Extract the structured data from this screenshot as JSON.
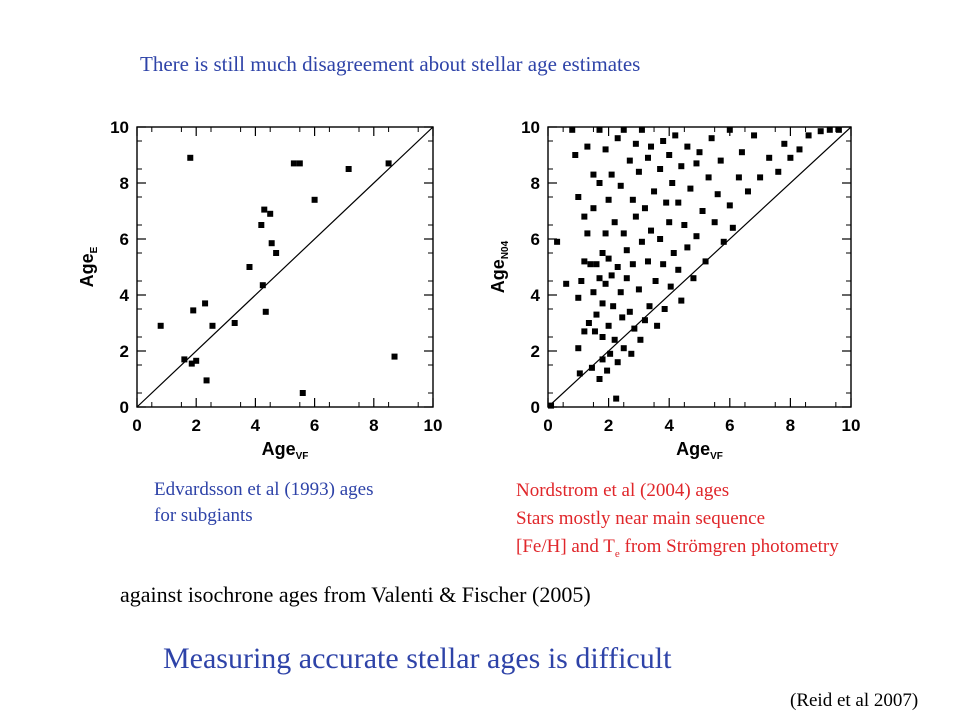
{
  "title": "There is still much disagreement about stellar age estimates",
  "captions": {
    "left_line1": "Edvardsson et al (1993) ages",
    "left_line2": "for subgiants",
    "right_line1": "Nordstrom et al (2004) ages",
    "right_line2": "Stars mostly near main sequence",
    "right_line3_a": "[Fe/H] and T",
    "right_line3_sub": "e",
    "right_line3_b": " from Strömgren photometry"
  },
  "against": "against isochrone ages from Valenti & Fischer (2005)",
  "conclusion": "Measuring accurate stellar ages is difficult",
  "citation": "(Reid et al 2007)",
  "chart_data": [
    {
      "type": "scatter",
      "xlabel": "Age",
      "xlabel_sub": "VF",
      "ylabel": "Age",
      "ylabel_sub": "E",
      "xlim": [
        0,
        10
      ],
      "ylim": [
        0,
        10
      ],
      "xticks": [
        0,
        2,
        4,
        6,
        8,
        10
      ],
      "yticks": [
        0,
        2,
        4,
        6,
        8,
        10
      ],
      "one_to_one_line": true,
      "marker_color": "#000000",
      "points": [
        [
          0.8,
          2.9
        ],
        [
          1.6,
          1.7
        ],
        [
          1.8,
          8.9
        ],
        [
          1.85,
          1.55
        ],
        [
          1.9,
          3.45
        ],
        [
          2.0,
          1.65
        ],
        [
          2.3,
          3.7
        ],
        [
          2.35,
          0.95
        ],
        [
          2.55,
          2.9
        ],
        [
          3.3,
          3.0
        ],
        [
          3.8,
          5.0
        ],
        [
          4.2,
          6.5
        ],
        [
          4.25,
          4.35
        ],
        [
          4.3,
          7.05
        ],
        [
          4.35,
          3.4
        ],
        [
          4.5,
          6.9
        ],
        [
          4.55,
          5.85
        ],
        [
          4.7,
          5.5
        ],
        [
          5.3,
          8.7
        ],
        [
          5.5,
          8.7
        ],
        [
          5.6,
          0.5
        ],
        [
          6.0,
          7.4
        ],
        [
          7.15,
          8.5
        ],
        [
          8.5,
          8.7
        ],
        [
          8.7,
          1.8
        ]
      ]
    },
    {
      "type": "scatter",
      "xlabel": "Age",
      "xlabel_sub": "VF",
      "ylabel": "Age",
      "ylabel_sub": "N04",
      "xlim": [
        0,
        10
      ],
      "ylim": [
        0,
        10
      ],
      "xticks": [
        0,
        2,
        4,
        6,
        8,
        10
      ],
      "yticks": [
        0,
        2,
        4,
        6,
        8,
        10
      ],
      "one_to_one_line": true,
      "marker_color": "#000000",
      "points": [
        [
          0.1,
          0.05
        ],
        [
          0.3,
          5.9
        ],
        [
          0.6,
          4.4
        ],
        [
          0.8,
          9.9
        ],
        [
          0.9,
          9.0
        ],
        [
          1.0,
          7.5
        ],
        [
          1.0,
          3.9
        ],
        [
          1.0,
          2.1
        ],
        [
          1.05,
          1.2
        ],
        [
          1.1,
          4.5
        ],
        [
          1.2,
          6.8
        ],
        [
          1.2,
          5.2
        ],
        [
          1.2,
          2.7
        ],
        [
          1.3,
          9.3
        ],
        [
          1.3,
          6.2
        ],
        [
          1.35,
          3.0
        ],
        [
          1.4,
          5.1
        ],
        [
          1.45,
          1.4
        ],
        [
          1.5,
          8.3
        ],
        [
          1.5,
          7.1
        ],
        [
          1.5,
          4.1
        ],
        [
          1.55,
          2.7
        ],
        [
          1.6,
          5.1
        ],
        [
          1.6,
          3.3
        ],
        [
          1.7,
          9.9
        ],
        [
          1.7,
          8.0
        ],
        [
          1.7,
          4.6
        ],
        [
          1.7,
          1.0
        ],
        [
          1.8,
          5.5
        ],
        [
          1.8,
          3.7
        ],
        [
          1.8,
          2.5
        ],
        [
          1.8,
          1.7
        ],
        [
          1.9,
          9.2
        ],
        [
          1.9,
          6.2
        ],
        [
          1.9,
          4.4
        ],
        [
          1.95,
          1.3
        ],
        [
          2.0,
          7.4
        ],
        [
          2.0,
          5.3
        ],
        [
          2.0,
          2.9
        ],
        [
          2.05,
          1.9
        ],
        [
          2.1,
          8.3
        ],
        [
          2.1,
          4.7
        ],
        [
          2.15,
          3.6
        ],
        [
          2.2,
          6.6
        ],
        [
          2.2,
          2.4
        ],
        [
          2.25,
          0.3
        ],
        [
          2.3,
          9.6
        ],
        [
          2.3,
          5.0
        ],
        [
          2.3,
          1.6
        ],
        [
          2.4,
          7.9
        ],
        [
          2.4,
          4.1
        ],
        [
          2.45,
          3.2
        ],
        [
          2.5,
          9.9
        ],
        [
          2.5,
          6.2
        ],
        [
          2.5,
          2.1
        ],
        [
          2.6,
          5.6
        ],
        [
          2.6,
          4.6
        ],
        [
          2.7,
          8.8
        ],
        [
          2.7,
          3.4
        ],
        [
          2.75,
          1.9
        ],
        [
          2.8,
          7.4
        ],
        [
          2.8,
          5.1
        ],
        [
          2.85,
          2.8
        ],
        [
          2.9,
          9.4
        ],
        [
          2.9,
          6.8
        ],
        [
          3.0,
          4.2
        ],
        [
          3.0,
          8.4
        ],
        [
          3.05,
          2.4
        ],
        [
          3.1,
          5.9
        ],
        [
          3.1,
          9.9
        ],
        [
          3.2,
          7.1
        ],
        [
          3.2,
          3.1
        ],
        [
          3.3,
          8.9
        ],
        [
          3.3,
          5.2
        ],
        [
          3.35,
          3.6
        ],
        [
          3.4,
          6.3
        ],
        [
          3.4,
          9.3
        ],
        [
          3.5,
          7.7
        ],
        [
          3.55,
          4.5
        ],
        [
          3.6,
          2.9
        ],
        [
          3.7,
          8.5
        ],
        [
          3.7,
          6.0
        ],
        [
          3.8,
          9.5
        ],
        [
          3.8,
          5.1
        ],
        [
          3.85,
          3.5
        ],
        [
          3.9,
          7.3
        ],
        [
          4.0,
          9.0
        ],
        [
          4.0,
          6.6
        ],
        [
          4.05,
          4.3
        ],
        [
          4.1,
          8.0
        ],
        [
          4.15,
          5.5
        ],
        [
          4.2,
          9.7
        ],
        [
          4.3,
          7.3
        ],
        [
          4.3,
          4.9
        ],
        [
          4.4,
          8.6
        ],
        [
          4.4,
          3.8
        ],
        [
          4.5,
          6.5
        ],
        [
          4.6,
          9.3
        ],
        [
          4.6,
          5.7
        ],
        [
          4.7,
          7.8
        ],
        [
          4.8,
          4.6
        ],
        [
          4.9,
          8.7
        ],
        [
          4.9,
          6.1
        ],
        [
          5.0,
          9.1
        ],
        [
          5.1,
          7.0
        ],
        [
          5.2,
          5.2
        ],
        [
          5.3,
          8.2
        ],
        [
          5.4,
          9.6
        ],
        [
          5.5,
          6.6
        ],
        [
          5.6,
          7.6
        ],
        [
          5.7,
          8.8
        ],
        [
          5.8,
          5.9
        ],
        [
          6.0,
          7.2
        ],
        [
          6.0,
          9.9
        ],
        [
          6.1,
          6.4
        ],
        [
          6.3,
          8.2
        ],
        [
          6.4,
          9.1
        ],
        [
          6.6,
          7.7
        ],
        [
          6.8,
          9.7
        ],
        [
          7.0,
          8.2
        ],
        [
          7.3,
          8.9
        ],
        [
          7.6,
          8.4
        ],
        [
          7.8,
          9.4
        ],
        [
          8.0,
          8.9
        ],
        [
          8.3,
          9.2
        ],
        [
          8.6,
          9.7
        ],
        [
          9.0,
          9.85
        ],
        [
          9.3,
          9.9
        ],
        [
          9.6,
          9.9
        ]
      ]
    }
  ]
}
